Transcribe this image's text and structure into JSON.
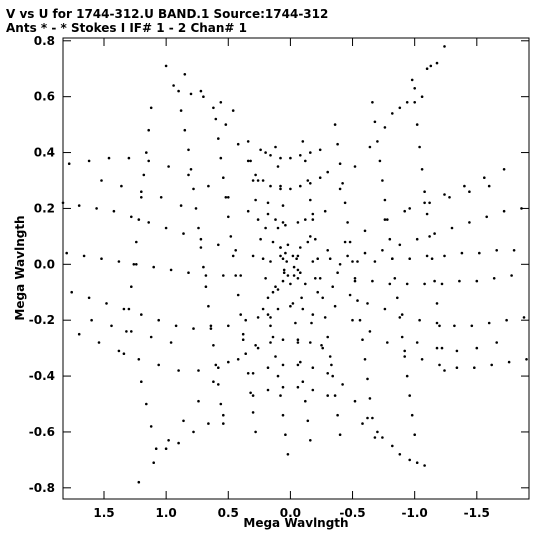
{
  "chart_data": {
    "type": "scatter",
    "title": "V vs U for 1744-312.U BAND.1   Source:1744-312",
    "subtitle": "Ants * - *      Stokes I   IF# 1 - 2   Chan# 1",
    "xlabel": "Mega Wavlngth",
    "ylabel": "Mega Wavlngth",
    "xlim": [
      1.83,
      -1.92
    ],
    "ylim": [
      -0.84,
      0.81
    ],
    "x_ticks": [
      1.5,
      1.0,
      0.5,
      0.0,
      -0.5,
      -1.0,
      -1.5
    ],
    "x_tick_labels": [
      "1.5",
      "1.0",
      "0.5",
      "0.0",
      "-0.5",
      "-1.0",
      "-1.5"
    ],
    "y_ticks": [
      -0.8,
      -0.6,
      -0.4,
      -0.2,
      0.0,
      0.2,
      0.4,
      0.6,
      0.8
    ],
    "y_tick_labels": [
      "-0.8",
      "-0.6",
      "-0.4",
      "-0.2",
      "0.0",
      "0.2",
      "0.4",
      "0.6",
      "0.8"
    ],
    "grid": false,
    "marker_color": "#000000",
    "points": [
      [
        1.0,
        0.71
      ],
      [
        0.85,
        0.68
      ],
      [
        0.72,
        0.62
      ],
      [
        0.62,
        0.56
      ],
      [
        0.52,
        0.5
      ],
      [
        0.42,
        0.43
      ],
      [
        0.34,
        0.37
      ],
      [
        0.26,
        0.3
      ],
      [
        0.18,
        0.22
      ],
      [
        0.1,
        0.13
      ],
      [
        0.04,
        0.04
      ],
      [
        -1.24,
        0.78
      ],
      [
        -1.13,
        0.71
      ],
      [
        -1.0,
        0.63
      ],
      [
        -0.88,
        0.56
      ],
      [
        -0.76,
        0.49
      ],
      [
        -0.64,
        0.42
      ],
      [
        -0.52,
        0.35
      ],
      [
        -0.4,
        0.27
      ],
      [
        -0.28,
        0.19
      ],
      [
        -0.16,
        0.1
      ],
      [
        -0.06,
        0.03
      ],
      [
        1.22,
        -0.78
      ],
      [
        1.1,
        -0.71
      ],
      [
        0.98,
        -0.63
      ],
      [
        0.86,
        -0.56
      ],
      [
        0.74,
        -0.49
      ],
      [
        0.62,
        -0.42
      ],
      [
        0.5,
        -0.35
      ],
      [
        0.38,
        -0.27
      ],
      [
        0.26,
        -0.19
      ],
      [
        0.14,
        -0.1
      ],
      [
        0.05,
        -0.03
      ],
      [
        -1.02,
        -0.71
      ],
      [
        -0.88,
        -0.68
      ],
      [
        -0.74,
        -0.62
      ],
      [
        -0.62,
        -0.55
      ],
      [
        -0.52,
        -0.49
      ],
      [
        -0.42,
        -0.43
      ],
      [
        -0.33,
        -0.36
      ],
      [
        -0.25,
        -0.29
      ],
      [
        -0.17,
        -0.21
      ],
      [
        -0.09,
        -0.12
      ],
      [
        -0.03,
        -0.04
      ],
      [
        1.78,
        0.36
      ],
      [
        1.62,
        0.37
      ],
      [
        1.46,
        0.38
      ],
      [
        1.3,
        0.38
      ],
      [
        1.14,
        0.37
      ],
      [
        0.98,
        0.35
      ],
      [
        0.82,
        0.32
      ],
      [
        0.66,
        0.28
      ],
      [
        0.5,
        0.24
      ],
      [
        0.34,
        0.19
      ],
      [
        0.2,
        0.13
      ],
      [
        0.08,
        0.06
      ],
      [
        1.83,
        0.22
      ],
      [
        1.7,
        0.21
      ],
      [
        1.56,
        0.2
      ],
      [
        1.42,
        0.19
      ],
      [
        1.28,
        0.17
      ],
      [
        1.14,
        0.15
      ],
      [
        1.0,
        0.13
      ],
      [
        0.86,
        0.11
      ],
      [
        0.72,
        0.09
      ],
      [
        0.58,
        0.07
      ],
      [
        0.44,
        0.05
      ],
      [
        0.3,
        0.03
      ],
      [
        0.16,
        0.01
      ],
      [
        1.8,
        0.04
      ],
      [
        1.66,
        0.03
      ],
      [
        1.52,
        0.02
      ],
      [
        1.38,
        0.01
      ],
      [
        1.24,
        0.0
      ],
      [
        1.1,
        -0.01
      ],
      [
        0.96,
        -0.02
      ],
      [
        0.82,
        -0.03
      ],
      [
        0.68,
        -0.04
      ],
      [
        0.54,
        -0.04
      ],
      [
        0.4,
        -0.04
      ],
      [
        1.76,
        -0.1
      ],
      [
        1.62,
        -0.12
      ],
      [
        1.48,
        -0.14
      ],
      [
        1.34,
        -0.16
      ],
      [
        1.2,
        -0.18
      ],
      [
        1.06,
        -0.2
      ],
      [
        0.92,
        -0.22
      ],
      [
        0.78,
        -0.23
      ],
      [
        0.64,
        -0.23
      ],
      [
        0.5,
        -0.22
      ],
      [
        0.36,
        -0.2
      ],
      [
        0.22,
        -0.16
      ],
      [
        0.1,
        -0.09
      ],
      [
        1.7,
        -0.25
      ],
      [
        1.54,
        -0.28
      ],
      [
        1.38,
        -0.31
      ],
      [
        1.22,
        -0.34
      ],
      [
        1.06,
        -0.36
      ],
      [
        0.9,
        -0.38
      ],
      [
        0.74,
        -0.38
      ],
      [
        0.58,
        -0.37
      ],
      [
        0.42,
        -0.34
      ],
      [
        0.28,
        -0.29
      ],
      [
        0.16,
        -0.22
      ],
      [
        -1.88,
        -0.19
      ],
      [
        -1.74,
        -0.2
      ],
      [
        -1.6,
        -0.21
      ],
      [
        -1.46,
        -0.22
      ],
      [
        -1.32,
        -0.22
      ],
      [
        -1.18,
        -0.21
      ],
      [
        -1.04,
        -0.2
      ],
      [
        -0.9,
        -0.18
      ],
      [
        -0.76,
        -0.16
      ],
      [
        -0.62,
        -0.14
      ],
      [
        -0.48,
        -0.11
      ],
      [
        -0.34,
        -0.08
      ],
      [
        -0.2,
        -0.05
      ],
      [
        -1.9,
        -0.34
      ],
      [
        -1.76,
        -0.35
      ],
      [
        -1.62,
        -0.36
      ],
      [
        -1.48,
        -0.37
      ],
      [
        -1.34,
        -0.37
      ],
      [
        -1.2,
        -0.36
      ],
      [
        -1.06,
        -0.34
      ],
      [
        -0.92,
        -0.31
      ],
      [
        -0.78,
        -0.28
      ],
      [
        -0.64,
        -0.24
      ],
      [
        -0.5,
        -0.2
      ],
      [
        -0.36,
        -0.15
      ],
      [
        -0.22,
        -0.1
      ],
      [
        -1.86,
        0.2
      ],
      [
        -1.72,
        0.19
      ],
      [
        -1.58,
        0.17
      ],
      [
        -1.44,
        0.15
      ],
      [
        -1.3,
        0.13
      ],
      [
        -1.16,
        0.11
      ],
      [
        -1.02,
        0.09
      ],
      [
        -0.88,
        0.07
      ],
      [
        -0.74,
        0.05
      ],
      [
        -0.6,
        0.04
      ],
      [
        -0.46,
        0.03
      ],
      [
        -0.32,
        0.02
      ],
      [
        -0.18,
        0.01
      ],
      [
        -1.8,
        0.05
      ],
      [
        -1.66,
        0.05
      ],
      [
        -1.52,
        0.04
      ],
      [
        -1.38,
        0.04
      ],
      [
        -1.24,
        0.03
      ],
      [
        -1.1,
        0.03
      ],
      [
        -0.96,
        0.02
      ],
      [
        -0.82,
        0.02
      ],
      [
        -0.68,
        0.01
      ],
      [
        -0.54,
        0.01
      ],
      [
        -0.4,
        0.0
      ],
      [
        -1.78,
        -0.04
      ],
      [
        -1.64,
        -0.05
      ],
      [
        -1.5,
        -0.06
      ],
      [
        -1.36,
        -0.06
      ],
      [
        -1.22,
        -0.07
      ],
      [
        -1.08,
        -0.07
      ],
      [
        -0.94,
        -0.07
      ],
      [
        -0.8,
        -0.07
      ],
      [
        -0.66,
        -0.06
      ],
      [
        -0.52,
        -0.05
      ],
      [
        -0.38,
        -0.03
      ],
      [
        -1.72,
        0.34
      ],
      [
        -1.56,
        0.31
      ],
      [
        -1.4,
        0.28
      ],
      [
        -1.24,
        0.25
      ],
      [
        -1.08,
        0.22
      ],
      [
        -0.92,
        0.19
      ],
      [
        -0.76,
        0.16
      ],
      [
        -0.6,
        0.12
      ],
      [
        -0.44,
        0.08
      ],
      [
        -0.3,
        0.05
      ],
      [
        0.9,
        0.62
      ],
      [
        0.88,
        0.55
      ],
      [
        0.85,
        0.48
      ],
      [
        0.82,
        0.41
      ],
      [
        0.8,
        0.34
      ],
      [
        0.78,
        0.27
      ],
      [
        0.76,
        0.2
      ],
      [
        0.74,
        0.13
      ],
      [
        0.72,
        0.06
      ],
      [
        0.7,
        -0.01
      ],
      [
        0.68,
        -0.08
      ],
      [
        0.66,
        -0.15
      ],
      [
        0.64,
        -0.22
      ],
      [
        0.62,
        -0.29
      ],
      [
        0.6,
        -0.36
      ],
      [
        0.58,
        -0.43
      ],
      [
        0.56,
        -0.5
      ],
      [
        0.54,
        -0.57
      ],
      [
        0.6,
        0.52
      ],
      [
        0.58,
        0.45
      ],
      [
        0.56,
        0.38
      ],
      [
        0.54,
        0.31
      ],
      [
        0.52,
        0.24
      ],
      [
        0.5,
        0.17
      ],
      [
        0.48,
        0.1
      ],
      [
        0.46,
        0.03
      ],
      [
        0.44,
        -0.04
      ],
      [
        0.42,
        -0.11
      ],
      [
        0.4,
        -0.18
      ],
      [
        0.38,
        -0.25
      ],
      [
        0.36,
        -0.32
      ],
      [
        0.34,
        -0.39
      ],
      [
        0.32,
        -0.46
      ],
      [
        0.3,
        -0.53
      ],
      [
        0.28,
        -0.6
      ],
      [
        0.34,
        0.44
      ],
      [
        0.32,
        0.37
      ],
      [
        0.3,
        0.3
      ],
      [
        0.28,
        0.23
      ],
      [
        0.26,
        0.16
      ],
      [
        0.24,
        0.09
      ],
      [
        0.22,
        0.02
      ],
      [
        0.2,
        -0.05
      ],
      [
        0.18,
        -0.12
      ],
      [
        0.16,
        -0.19
      ],
      [
        0.14,
        -0.26
      ],
      [
        0.12,
        -0.33
      ],
      [
        0.1,
        -0.4
      ],
      [
        0.08,
        -0.47
      ],
      [
        0.06,
        -0.54
      ],
      [
        0.04,
        -0.61
      ],
      [
        0.02,
        -0.68
      ],
      [
        0.12,
        0.42
      ],
      [
        0.1,
        0.35
      ],
      [
        0.08,
        0.28
      ],
      [
        0.06,
        0.21
      ],
      [
        0.04,
        0.14
      ],
      [
        0.02,
        0.07
      ],
      [
        0.0,
        -0.07
      ],
      [
        -0.02,
        -0.14
      ],
      [
        -0.04,
        -0.21
      ],
      [
        -0.06,
        -0.28
      ],
      [
        -0.08,
        -0.35
      ],
      [
        -0.1,
        -0.42
      ],
      [
        -0.12,
        -0.49
      ],
      [
        -0.14,
        -0.56
      ],
      [
        -0.16,
        -0.63
      ],
      [
        -0.1,
        0.44
      ],
      [
        -0.12,
        0.37
      ],
      [
        -0.14,
        0.3
      ],
      [
        -0.16,
        0.23
      ],
      [
        -0.18,
        0.16
      ],
      [
        -0.2,
        0.09
      ],
      [
        -0.22,
        0.02
      ],
      [
        -0.24,
        -0.05
      ],
      [
        -0.26,
        -0.12
      ],
      [
        -0.28,
        -0.19
      ],
      [
        -0.3,
        -0.26
      ],
      [
        -0.32,
        -0.33
      ],
      [
        -0.34,
        -0.4
      ],
      [
        -0.36,
        -0.47
      ],
      [
        -0.38,
        -0.54
      ],
      [
        -0.4,
        -0.61
      ],
      [
        -0.36,
        0.5
      ],
      [
        -0.38,
        0.43
      ],
      [
        -0.4,
        0.36
      ],
      [
        -0.42,
        0.29
      ],
      [
        -0.44,
        0.22
      ],
      [
        -0.46,
        0.15
      ],
      [
        -0.48,
        0.08
      ],
      [
        -0.5,
        0.01
      ],
      [
        -0.52,
        -0.06
      ],
      [
        -0.54,
        -0.13
      ],
      [
        -0.56,
        -0.2
      ],
      [
        -0.58,
        -0.27
      ],
      [
        -0.6,
        -0.34
      ],
      [
        -0.62,
        -0.41
      ],
      [
        -0.64,
        -0.48
      ],
      [
        -0.66,
        -0.55
      ],
      [
        -0.68,
        -0.62
      ],
      [
        -0.66,
        0.58
      ],
      [
        -0.68,
        0.51
      ],
      [
        -0.7,
        0.44
      ],
      [
        -0.72,
        0.37
      ],
      [
        -0.74,
        0.3
      ],
      [
        -0.76,
        0.23
      ],
      [
        -0.78,
        0.16
      ],
      [
        -0.8,
        0.09
      ],
      [
        -0.82,
        0.02
      ],
      [
        -0.84,
        -0.05
      ],
      [
        -0.86,
        -0.12
      ],
      [
        -0.88,
        -0.19
      ],
      [
        -0.9,
        -0.26
      ],
      [
        -0.92,
        -0.33
      ],
      [
        -0.94,
        -0.4
      ],
      [
        -0.96,
        -0.47
      ],
      [
        -0.98,
        -0.54
      ],
      [
        -1.0,
        -0.61
      ],
      [
        -0.98,
        0.66
      ],
      [
        -1.0,
        0.58
      ],
      [
        -1.02,
        0.5
      ],
      [
        -1.04,
        0.42
      ],
      [
        -1.06,
        0.34
      ],
      [
        -1.08,
        0.26
      ],
      [
        -1.1,
        0.18
      ],
      [
        -1.12,
        0.1
      ],
      [
        -1.14,
        0.02
      ],
      [
        -1.16,
        -0.06
      ],
      [
        -1.18,
        -0.14
      ],
      [
        -1.2,
        -0.22
      ],
      [
        -1.22,
        -0.3
      ],
      [
        -1.24,
        -0.38
      ],
      [
        1.12,
        0.56
      ],
      [
        1.14,
        0.48
      ],
      [
        1.16,
        0.4
      ],
      [
        1.18,
        0.32
      ],
      [
        1.2,
        0.24
      ],
      [
        1.22,
        0.16
      ],
      [
        1.24,
        0.08
      ],
      [
        1.26,
        0.0
      ],
      [
        1.28,
        -0.08
      ],
      [
        1.3,
        -0.16
      ],
      [
        1.32,
        -0.24
      ],
      [
        1.34,
        -0.32
      ],
      [
        1.2,
        -0.42
      ],
      [
        1.16,
        -0.5
      ],
      [
        1.12,
        -0.58
      ],
      [
        1.08,
        -0.66
      ],
      [
        0.24,
        0.41
      ],
      [
        0.2,
        0.4
      ],
      [
        0.16,
        0.39
      ],
      [
        0.08,
        0.38
      ],
      [
        0.0,
        0.38
      ],
      [
        -0.08,
        0.39
      ],
      [
        -0.16,
        0.4
      ],
      [
        -0.24,
        0.41
      ],
      [
        0.28,
        0.32
      ],
      [
        0.22,
        0.3
      ],
      [
        0.16,
        0.28
      ],
      [
        0.08,
        0.27
      ],
      [
        0.0,
        0.27
      ],
      [
        -0.08,
        0.28
      ],
      [
        -0.16,
        0.29
      ],
      [
        -0.24,
        0.31
      ],
      [
        -0.3,
        0.33
      ],
      [
        0.18,
        0.18
      ],
      [
        0.12,
        0.16
      ],
      [
        0.06,
        0.15
      ],
      [
        -0.06,
        0.15
      ],
      [
        -0.12,
        0.16
      ],
      [
        -0.18,
        0.18
      ],
      [
        0.14,
        0.08
      ],
      [
        0.08,
        0.06
      ],
      [
        -0.08,
        0.06
      ],
      [
        -0.14,
        0.08
      ],
      [
        0.12,
        -0.08
      ],
      [
        0.06,
        -0.06
      ],
      [
        -0.06,
        -0.05
      ],
      [
        -0.12,
        -0.07
      ],
      [
        0.18,
        -0.18
      ],
      [
        0.1,
        -0.16
      ],
      [
        0.0,
        -0.15
      ],
      [
        -0.1,
        -0.16
      ],
      [
        -0.18,
        -0.18
      ],
      [
        0.26,
        -0.3
      ],
      [
        0.16,
        -0.28
      ],
      [
        0.06,
        -0.27
      ],
      [
        -0.06,
        -0.27
      ],
      [
        -0.16,
        -0.28
      ],
      [
        -0.26,
        -0.3
      ],
      [
        0.3,
        -0.39
      ],
      [
        0.18,
        -0.37
      ],
      [
        0.06,
        -0.36
      ],
      [
        -0.06,
        -0.36
      ],
      [
        -0.18,
        -0.37
      ],
      [
        -0.3,
        -0.39
      ],
      [
        0.3,
        -0.47
      ],
      [
        0.18,
        -0.45
      ],
      [
        0.06,
        -0.44
      ],
      [
        -0.06,
        -0.44
      ],
      [
        -0.18,
        -0.45
      ],
      [
        -0.3,
        -0.47
      ],
      [
        0.06,
        0.02
      ],
      [
        0.03,
        0.01
      ],
      [
        -0.03,
        -0.01
      ],
      [
        -0.06,
        -0.02
      ],
      [
        0.02,
        -0.04
      ],
      [
        -0.02,
        0.03
      ],
      [
        0.05,
        -0.02
      ],
      [
        -0.05,
        0.02
      ],
      [
        0.08,
        0.03
      ],
      [
        -0.08,
        -0.03
      ],
      [
        0.94,
        0.64
      ],
      [
        0.8,
        0.61
      ],
      [
        0.7,
        0.6
      ],
      [
        0.56,
        0.58
      ],
      [
        0.46,
        0.55
      ],
      [
        -1.1,
        0.7
      ],
      [
        -1.18,
        0.72
      ],
      [
        -1.06,
        0.6
      ],
      [
        -0.94,
        0.58
      ],
      [
        -0.82,
        0.54
      ],
      [
        1.0,
        -0.66
      ],
      [
        0.9,
        -0.64
      ],
      [
        0.78,
        -0.6
      ],
      [
        0.66,
        -0.57
      ],
      [
        0.54,
        -0.54
      ],
      [
        -1.08,
        -0.72
      ],
      [
        -0.96,
        -0.7
      ],
      [
        -0.82,
        -0.65
      ],
      [
        -0.7,
        -0.6
      ],
      [
        -0.58,
        -0.57
      ],
      [
        1.52,
        0.3
      ],
      [
        1.36,
        0.28
      ],
      [
        1.2,
        0.26
      ],
      [
        1.04,
        0.24
      ],
      [
        0.88,
        0.21
      ],
      [
        1.6,
        -0.2
      ],
      [
        1.44,
        -0.22
      ],
      [
        1.28,
        -0.24
      ],
      [
        1.12,
        -0.26
      ],
      [
        0.96,
        -0.28
      ],
      [
        -1.6,
        0.28
      ],
      [
        -1.44,
        0.26
      ],
      [
        -1.28,
        0.24
      ],
      [
        -1.12,
        0.22
      ],
      [
        -0.96,
        0.2
      ],
      [
        -1.66,
        -0.28
      ],
      [
        -1.5,
        -0.3
      ],
      [
        -1.34,
        -0.31
      ],
      [
        -1.18,
        -0.3
      ],
      [
        -1.02,
        -0.28
      ]
    ]
  }
}
